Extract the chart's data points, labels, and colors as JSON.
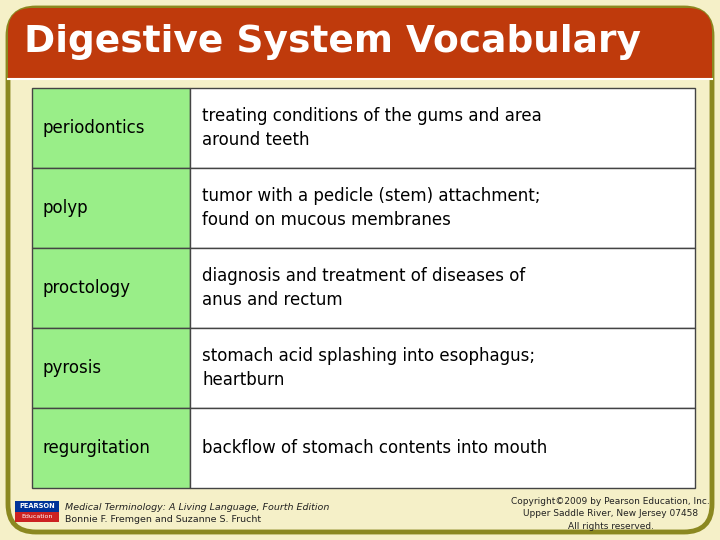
{
  "title": "Digestive System Vocabulary",
  "title_color": "#ffffff",
  "title_bg_color": "#bf3a0c",
  "background_color": "#f5f0c8",
  "table_rows": [
    [
      "periodontics",
      "treating conditions of the gums and area\naround teeth"
    ],
    [
      "polyp",
      "tumor with a pedicle (stem) attachment;\nfound on mucous membranes"
    ],
    [
      "proctology",
      "diagnosis and treatment of diseases of\nanus and rectum"
    ],
    [
      "pyrosis",
      "stomach acid splashing into esophagus;\nheartburn"
    ],
    [
      "regurgitation",
      "backflow of stomach contents into mouth"
    ]
  ],
  "term_bg_color": "#99ee88",
  "def_bg_color": "#ffffff",
  "table_border_color": "#444444",
  "table_text_color": "#000000",
  "footer_left_line1": "Medical Terminology: A Living Language, Fourth Edition",
  "footer_left_line2": "Bonnie F. Fremgen and Suzanne S. Frucht",
  "footer_right_line1": "Copyright©2009 by Pearson Education, Inc.",
  "footer_right_line2": "Upper Saddle River, New Jersey 07458",
  "footer_right_line3": "All rights reserved.",
  "outer_border_color": "#8b8820",
  "pearson_bg_color": "#003399",
  "education_bg_color": "#cc2222",
  "fig_width": 7.2,
  "fig_height": 5.4,
  "dpi": 100
}
